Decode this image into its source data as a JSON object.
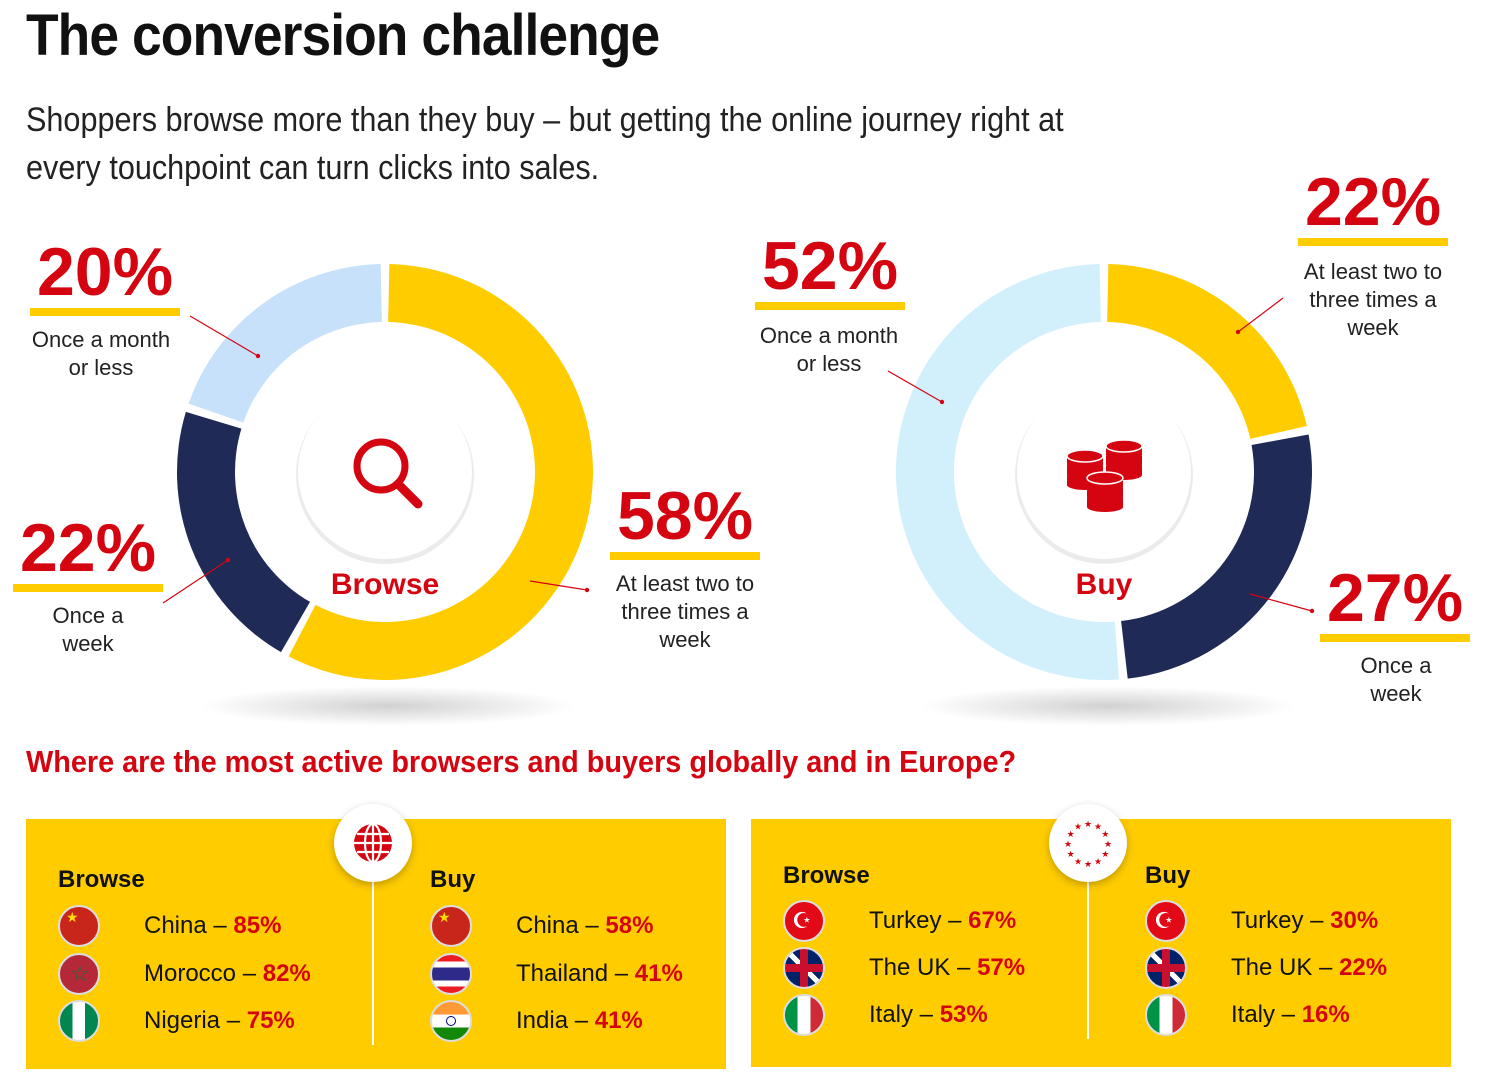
{
  "title": "The conversion challenge",
  "subtitle": "Shoppers browse more than they buy – but getting the online journey right at every touchpoint can turn clicks into sales.",
  "question": "Where are the most active browsers and buyers globally and in Europe?",
  "colors": {
    "yellow": "#ffcc00",
    "navy": "#1f2a56",
    "light_blue_browse": "#c8e1fb",
    "light_blue_buy": "#d2f0fc",
    "red": "#d40511"
  },
  "chart_data": [
    {
      "type": "pie",
      "title": "Browse",
      "categories": [
        "At least two to three times a week",
        "Once a week",
        "Once a month or less"
      ],
      "values": [
        58,
        22,
        20
      ],
      "labels": [
        "58%",
        "22%",
        "20%"
      ],
      "colors": [
        "#ffcc00",
        "#1f2a56",
        "#c8e1fb"
      ]
    },
    {
      "type": "pie",
      "title": "Buy",
      "categories": [
        "At least two to three times a week",
        "Once a week",
        "Once a month or less"
      ],
      "values": [
        22,
        27,
        52
      ],
      "labels": [
        "22%",
        "27%",
        "52%"
      ],
      "colors": [
        "#ffcc00",
        "#1f2a56",
        "#d2f0fc"
      ]
    }
  ],
  "browse_labels": {
    "weekly_multi": "At least two to three times a week",
    "weekly": "Once a week",
    "monthly": "Once a month or less"
  },
  "global": {
    "browse_heading": "Browse",
    "buy_heading": "Buy",
    "browse": [
      {
        "country": "China",
        "value": "85%"
      },
      {
        "country": "Morocco",
        "value": "82%"
      },
      {
        "country": "Nigeria",
        "value": "75%"
      }
    ],
    "buy": [
      {
        "country": "China",
        "value": "58%"
      },
      {
        "country": "Thailand",
        "value": "41%"
      },
      {
        "country": "India",
        "value": "41%"
      }
    ]
  },
  "europe": {
    "browse_heading": "Browse",
    "buy_heading": "Buy",
    "browse": [
      {
        "country": "Turkey",
        "value": "67%"
      },
      {
        "country": "The UK",
        "value": "57%"
      },
      {
        "country": "Italy",
        "value": "53%"
      }
    ],
    "buy": [
      {
        "country": "Turkey",
        "value": "30%"
      },
      {
        "country": "The UK",
        "value": "22%"
      },
      {
        "country": "Italy",
        "value": "16%"
      }
    ]
  }
}
